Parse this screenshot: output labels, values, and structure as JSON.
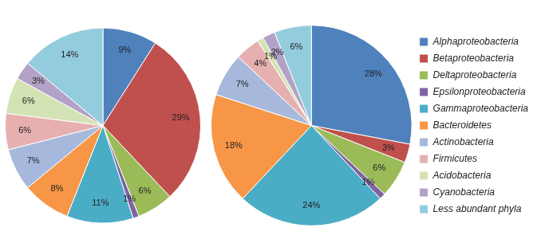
{
  "chart_data": [
    {
      "type": "pie",
      "categories": [
        "Alphaproteobacteria",
        "Betaproteobacteria",
        "Deltaproteobacteria",
        "Epsilonproteobacteria",
        "Gammaproteobacteria",
        "Bacteroidetes",
        "Actinobacteria",
        "Firmicutes",
        "Acidobacteria",
        "Cyanobacteria",
        "Less abundant phyla"
      ],
      "values": [
        9,
        29,
        6,
        1,
        11,
        8,
        7,
        6,
        6,
        3,
        14
      ],
      "value_labels": [
        "9%",
        "29%",
        "6%",
        "1%",
        "11%",
        "8%",
        "7%",
        "6%",
        "6%",
        "3%",
        "14%"
      ],
      "colors": [
        "#4f81bd",
        "#c0504d",
        "#9bbb59",
        "#8064a2",
        "#4bacc6",
        "#f79646",
        "#a6b9dd",
        "#e6b0b0",
        "#d3e3b4",
        "#b3a2c7",
        "#93cddd"
      ],
      "data_labels": true
    },
    {
      "type": "pie",
      "categories": [
        "Alphaproteobacteria",
        "Betaproteobacteria",
        "Deltaproteobacteria",
        "Epsilonproteobacteria",
        "Gammaproteobacteria",
        "Bacteroidetes",
        "Actinobacteria",
        "Firmicutes",
        "Acidobacteria",
        "Cyanobacteria",
        "Less abundant phyla"
      ],
      "values": [
        28,
        3,
        6,
        1,
        24,
        18,
        7,
        4,
        1,
        2,
        6
      ],
      "value_labels": [
        "28%",
        "3%",
        "6%",
        "1%",
        "24%",
        "18%",
        "7%",
        "4%",
        "1%",
        "2%",
        "6%"
      ],
      "colors": [
        "#4f81bd",
        "#c0504d",
        "#9bbb59",
        "#8064a2",
        "#4bacc6",
        "#f79646",
        "#a6b9dd",
        "#e6b0b0",
        "#d3e3b4",
        "#b3a2c7",
        "#93cddd"
      ],
      "data_labels": true,
      "legend": "right"
    }
  ]
}
